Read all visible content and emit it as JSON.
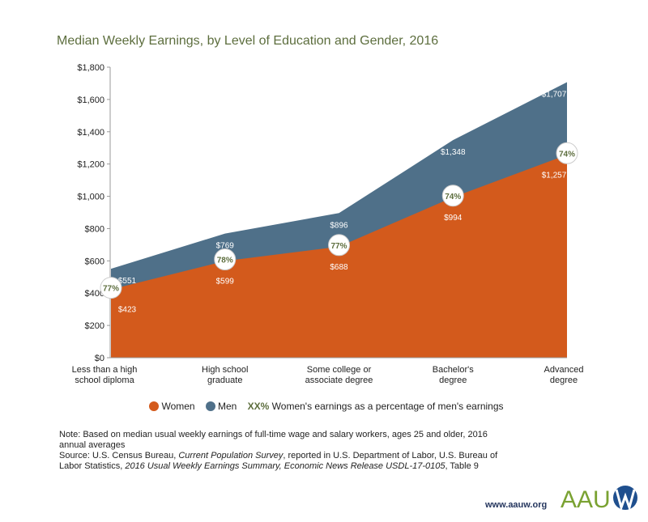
{
  "chart_data": {
    "type": "area",
    "title": "Median Weekly Earnings, by Level of Education and Gender, 2016",
    "categories": [
      "Less than a high school diploma",
      "High school graduate",
      "Some college or associate degree",
      "Bachelor's degree",
      "Advanced degree"
    ],
    "category_lines": [
      [
        "Less than a high",
        "school diploma"
      ],
      [
        "High school",
        "graduate"
      ],
      [
        "Some college or",
        "associate degree"
      ],
      [
        "Bachelor's",
        "degree"
      ],
      [
        "Advanced",
        "degree"
      ]
    ],
    "series": [
      {
        "name": "Women",
        "color": "#d35a1c",
        "values": [
          423,
          599,
          688,
          994,
          1257
        ],
        "labels": [
          "$423",
          "$599",
          "$688",
          "$994",
          "$1,257"
        ]
      },
      {
        "name": "Men",
        "color": "#4f7089",
        "values": [
          551,
          769,
          896,
          1348,
          1707
        ],
        "labels": [
          "$551",
          "$769",
          "$896",
          "$1,348",
          "$1,707"
        ]
      }
    ],
    "ratios": [
      "77%",
      "78%",
      "77%",
      "74%",
      "74%"
    ],
    "ylim": [
      0,
      1800
    ],
    "yticks": [
      0,
      200,
      400,
      600,
      800,
      1000,
      1200,
      1400,
      1600,
      1800
    ],
    "ytick_labels": [
      "$0",
      "$200",
      "$400",
      "$600",
      "$800",
      "$1,000",
      "$1,200",
      "$1,400",
      "$1,600",
      "$1,800"
    ],
    "ratio_color": "#5d6e3e",
    "legend": {
      "women": "Women",
      "men": "Men",
      "ratio_key": "XX%",
      "ratio_text": "Women's earnings as a percentage of men's earnings",
      "placement": "bottom"
    }
  },
  "note": "Note: Based on median usual weekly earnings of full-time wage and salary workers, ages 25 and older, 2016 annual averages",
  "source": {
    "prefix": "Source: U.S. Census Bureau, ",
    "survey": "Current Population Survey",
    "middle": ", reported in U.S. Department of Labor, U.S. Bureau of Labor Statistics, ",
    "report": "2016 Usual Weekly Earnings Summary, Economic News Release USDL-17-0105",
    "suffix": ", Table 9"
  },
  "footer": {
    "url": "www.aauw.org",
    "logo": "AAUW"
  }
}
